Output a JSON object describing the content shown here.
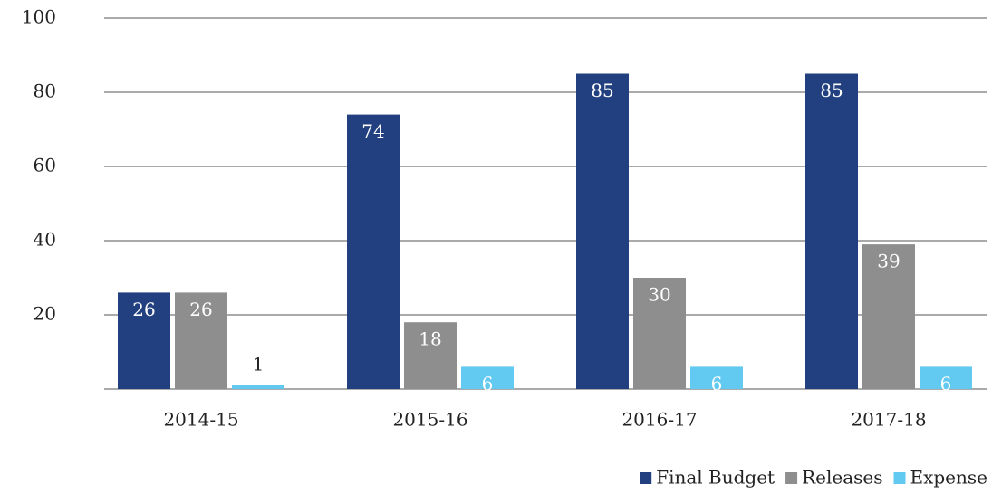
{
  "chart_data": {
    "type": "bar",
    "categories": [
      "2014-15",
      "2015-16",
      "2016-17",
      "2017-18"
    ],
    "series": [
      {
        "name": "Final Budget",
        "color": "#22407f",
        "values": [
          26,
          74,
          85,
          85
        ]
      },
      {
        "name": "Releases",
        "color": "#8e8e8e",
        "values": [
          26,
          18,
          30,
          39
        ]
      },
      {
        "name": "Expense",
        "color": "#62c9f0",
        "values": [
          1,
          6,
          6,
          6
        ]
      }
    ],
    "ylim": [
      0,
      100
    ],
    "yticks": [
      20,
      40,
      60,
      80,
      100
    ],
    "grid": true,
    "legend": "bottom-right"
  }
}
